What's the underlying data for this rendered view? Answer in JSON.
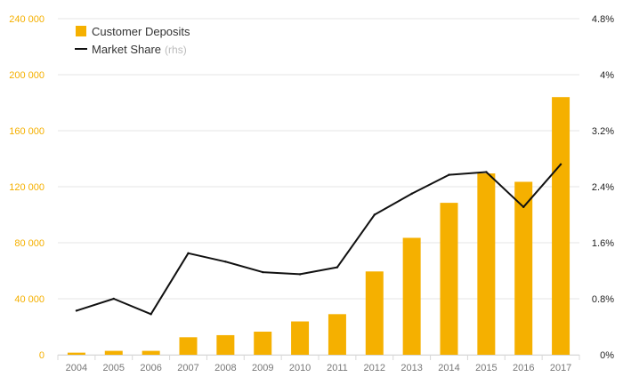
{
  "chart_data": {
    "type": "bar",
    "categories": [
      "2004",
      "2005",
      "2006",
      "2007",
      "2008",
      "2009",
      "2010",
      "2011",
      "2012",
      "2013",
      "2014",
      "2015",
      "2016",
      "2017"
    ],
    "series": [
      {
        "name": "Customer Deposits",
        "type": "bar",
        "axis": "left",
        "color": "#f5b000",
        "values": [
          1500,
          2800,
          2800,
          12500,
          14000,
          16500,
          23800,
          29000,
          59500,
          83500,
          108500,
          129500,
          123500,
          184000
        ]
      },
      {
        "name": "Market Share",
        "name_suffix": "(rhs)",
        "type": "line",
        "axis": "right",
        "color": "#111111",
        "values": [
          0.63,
          0.8,
          0.58,
          1.45,
          1.33,
          1.18,
          1.15,
          1.25,
          2.0,
          2.3,
          2.57,
          2.61,
          2.11,
          2.72
        ]
      }
    ],
    "y_left": {
      "ylim": [
        0,
        240000
      ],
      "ticks": [
        0,
        40000,
        80000,
        120000,
        160000,
        200000,
        240000
      ],
      "tick_labels": [
        "0",
        "40 000",
        "80 000",
        "120 000",
        "160 000",
        "200 000",
        "240 000"
      ]
    },
    "y_right": {
      "ylim": [
        0,
        4.8
      ],
      "ticks": [
        0,
        0.8,
        1.6,
        2.4,
        3.2,
        4.0,
        4.8
      ],
      "tick_labels": [
        "0%",
        "0.8%",
        "1.6%",
        "2.4%",
        "3.2%",
        "4%",
        "4.8%"
      ]
    },
    "grid": true,
    "legend_position": "top-left",
    "title": "",
    "xlabel": "",
    "ylabel": ""
  },
  "colors": {
    "accent": "#f5b000",
    "line": "#111111",
    "grid": "#e6e6e6"
  }
}
